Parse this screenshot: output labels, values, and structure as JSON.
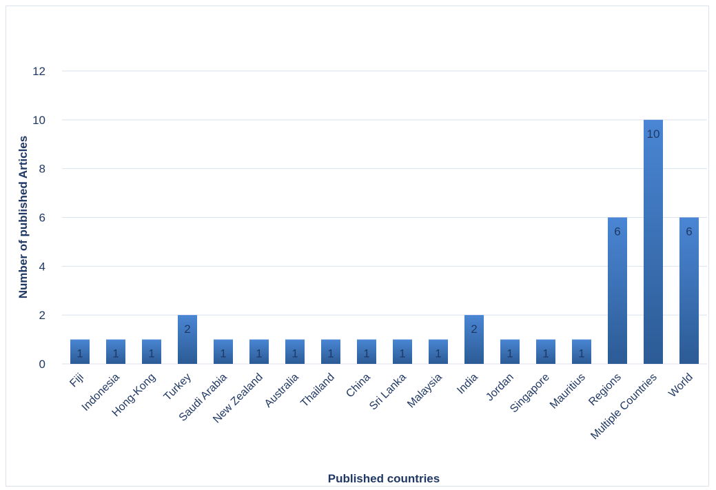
{
  "chart_data": {
    "type": "bar",
    "title": "",
    "xlabel": "Published countries",
    "ylabel": "Number of published Articles",
    "categories": [
      "Fiji",
      "Indonesia",
      "Hong-Kong",
      "Turkey",
      "Saudi Arabia",
      "New Zealand",
      "Australia",
      "Thailand",
      "China",
      "Sri Lanka",
      "Malaysia",
      "India",
      "Jordan",
      "Singapore",
      "Mauritius",
      "Regions",
      "Multiple Countries",
      "World"
    ],
    "values": [
      1,
      1,
      1,
      2,
      1,
      1,
      1,
      1,
      1,
      1,
      1,
      2,
      1,
      1,
      1,
      6,
      10,
      6
    ],
    "ylim": [
      0,
      12
    ],
    "yticks": [
      "0",
      "2",
      "4",
      "6",
      "8",
      "10",
      "12"
    ],
    "grid": true,
    "legend": "none",
    "colors": {
      "bar_top": "#4a86d4",
      "bar_bottom": "#2c5b95",
      "grid": "#d9e2ee",
      "text": "#1f3864"
    }
  }
}
